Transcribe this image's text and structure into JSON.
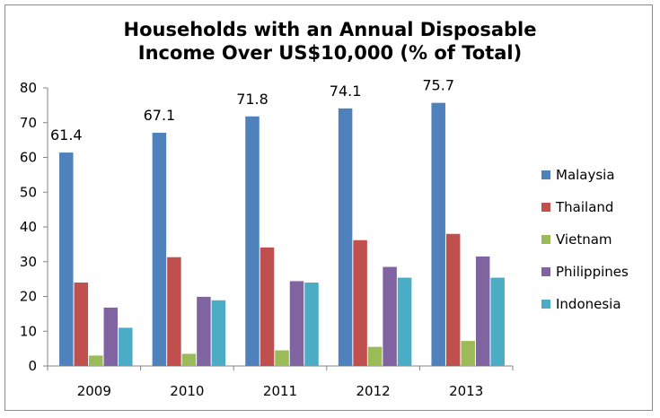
{
  "chart_data": {
    "type": "bar",
    "title_line1": "Households with an Annual Disposable",
    "title_line2": "Income Over US$10,000 (% of Total)",
    "categories": [
      "2009",
      "2010",
      "2011",
      "2012",
      "2013"
    ],
    "ylim": [
      0,
      80
    ],
    "yticks": [
      0,
      10,
      20,
      30,
      40,
      50,
      60,
      70,
      80
    ],
    "grid": false,
    "legend_position": "right",
    "data_label_series": "Malaysia",
    "series": [
      {
        "name": "Malaysia",
        "color": "#4f81bd",
        "values": [
          61.4,
          67.1,
          71.8,
          74.1,
          75.7
        ],
        "labels": [
          "61.4",
          "67.1",
          "71.8",
          "74.1",
          "75.7"
        ]
      },
      {
        "name": "Thailand",
        "color": "#c0504d",
        "values": [
          24.0,
          31.3,
          34.1,
          36.2,
          38.0
        ]
      },
      {
        "name": "Vietnam",
        "color": "#9bbb59",
        "values": [
          3.0,
          3.5,
          4.5,
          5.5,
          7.2
        ]
      },
      {
        "name": "Philippines",
        "color": "#8064a2",
        "values": [
          16.8,
          19.9,
          24.4,
          28.5,
          31.5
        ]
      },
      {
        "name": "Indonesia",
        "color": "#4bacc6",
        "values": [
          11.0,
          18.9,
          24.0,
          25.4,
          25.4
        ]
      }
    ]
  }
}
